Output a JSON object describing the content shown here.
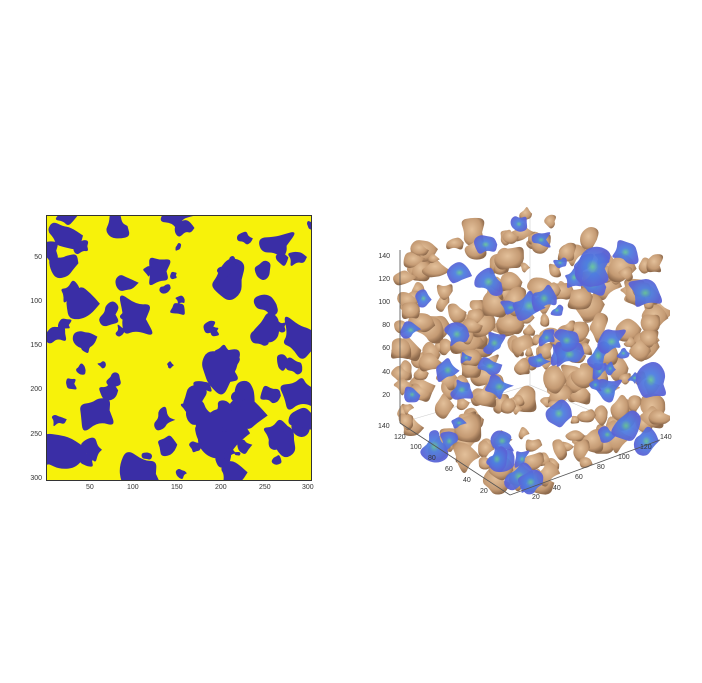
{
  "panel_2d": {
    "y_ticks": [
      "50",
      "100",
      "150",
      "200",
      "250",
      "300"
    ],
    "x_ticks": [
      "50",
      "100",
      "150",
      "200",
      "250",
      "300"
    ],
    "colors": {
      "matrix": "#f7f20a",
      "pore": "#3a2ea6"
    }
  },
  "panel_3d": {
    "z_ticks": [
      "140",
      "120",
      "100",
      "80",
      "60",
      "40",
      "20"
    ],
    "y_ticks": [
      "140",
      "120",
      "100",
      "80",
      "60",
      "40",
      "20"
    ],
    "x_ticks": [
      "20",
      "40",
      "60",
      "80",
      "100",
      "120",
      "140"
    ],
    "colors": {
      "solid": "#c9a07a",
      "surface": "#5a63d6",
      "hot": "#62c29a"
    }
  }
}
